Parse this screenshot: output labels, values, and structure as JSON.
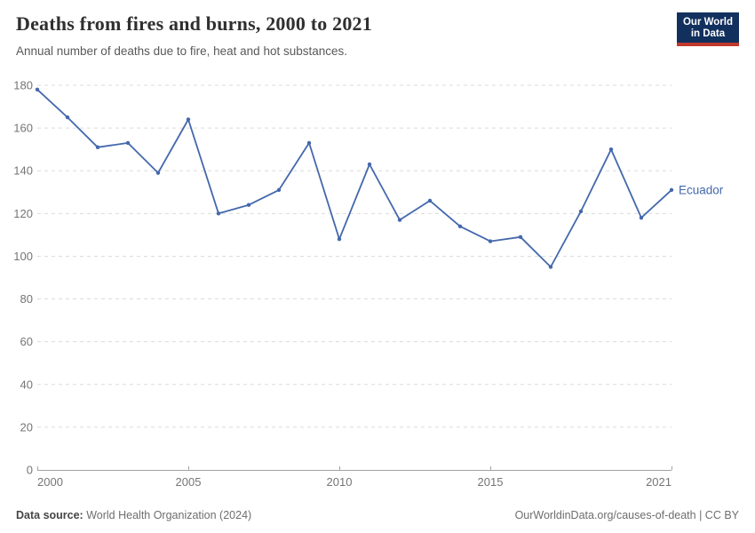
{
  "header": {
    "title": "Deaths from fires and burns, 2000 to 2021",
    "subtitle": "Annual number of deaths due to fire, heat and hot substances.",
    "logo": {
      "line1": "Our World",
      "line2": "in Data",
      "bg_color": "#12305e",
      "accent_color": "#c0392b"
    }
  },
  "chart_data": {
    "type": "line",
    "title": "Deaths from fires and burns, 2000 to 2021",
    "xlabel": "",
    "ylabel": "",
    "x": [
      2000,
      2001,
      2002,
      2003,
      2004,
      2005,
      2006,
      2007,
      2008,
      2009,
      2010,
      2011,
      2012,
      2013,
      2014,
      2015,
      2016,
      2017,
      2018,
      2019,
      2020,
      2021
    ],
    "series": [
      {
        "name": "Ecuador",
        "color": "#4468ac",
        "values": [
          178,
          165,
          151,
          153,
          139,
          164,
          120,
          124,
          131,
          153,
          108,
          143,
          117,
          126,
          114,
          107,
          109,
          95,
          121,
          150,
          118,
          131
        ]
      }
    ],
    "ylim": [
      0,
      180
    ],
    "y_ticks": [
      0,
      20,
      40,
      60,
      80,
      100,
      120,
      140,
      160,
      180
    ],
    "x_ticks": [
      2000,
      2005,
      2010,
      2015,
      2021
    ],
    "grid": "horizontal-dashed",
    "legend_position": "end-of-line"
  },
  "footer": {
    "source_label": "Data source:",
    "source_value": "World Health Organization (2024)",
    "credit": "OurWorldinData.org/causes-of-death | CC BY"
  }
}
